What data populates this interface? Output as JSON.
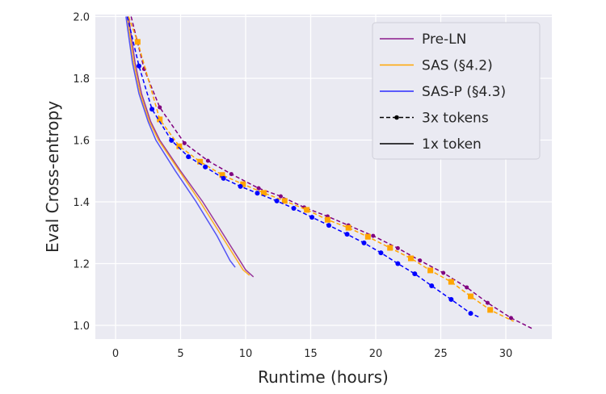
{
  "chart_data": {
    "type": "line",
    "title": "",
    "xlabel": "Runtime (hours)",
    "ylabel": "Eval Cross-entropy",
    "xlim": [
      -1.5,
      33.5
    ],
    "ylim": [
      0.95,
      2.0
    ],
    "xticks": [
      0,
      5,
      10,
      15,
      20,
      25,
      30
    ],
    "yticks": [
      1.0,
      1.2,
      1.4,
      1.6,
      1.8,
      2.0
    ],
    "xtick_labels": [
      "0",
      "5",
      "10",
      "15",
      "20",
      "25",
      "30"
    ],
    "ytick_labels": [
      "1.0",
      "1.2",
      "1.4",
      "1.6",
      "1.8",
      "2.0"
    ],
    "grid": true,
    "background": "#EAEAF2",
    "legend_position": "top-right",
    "legend": [
      {
        "label": "Pre-LN",
        "color": "#8B1A8B",
        "style": "solid"
      },
      {
        "label": "SAS (§4.2)",
        "color": "#FFA500",
        "style": "solid"
      },
      {
        "label": "SAS-P (§4.3)",
        "color": "#2B2BFF",
        "style": "solid"
      },
      {
        "label": "3x tokens",
        "color": "#000000",
        "style": "dashed-marker"
      },
      {
        "label": "1x token",
        "color": "#000000",
        "style": "solid"
      }
    ],
    "series": [
      {
        "model": "Pre-LN",
        "tokens": "1x",
        "color": "#8B1A8B",
        "dashed": false,
        "markers": false,
        "points": [
          [
            1.0,
            2.0
          ],
          [
            1.5,
            1.85
          ],
          [
            2.0,
            1.75
          ],
          [
            2.7,
            1.66
          ],
          [
            3.4,
            1.6
          ],
          [
            5.0,
            1.5
          ],
          [
            6.7,
            1.4
          ],
          [
            8.5,
            1.28
          ],
          [
            10.0,
            1.18
          ],
          [
            10.6,
            1.157
          ]
        ]
      },
      {
        "model": "SAS",
        "tokens": "1x",
        "color": "#FFA500",
        "dashed": false,
        "markers": false,
        "points": [
          [
            0.9,
            2.0
          ],
          [
            1.4,
            1.85
          ],
          [
            1.9,
            1.75
          ],
          [
            2.6,
            1.66
          ],
          [
            3.3,
            1.6
          ],
          [
            4.9,
            1.5
          ],
          [
            6.5,
            1.4
          ],
          [
            8.3,
            1.28
          ],
          [
            9.8,
            1.18
          ],
          [
            10.3,
            1.162
          ]
        ]
      },
      {
        "model": "SAS-P",
        "tokens": "1x",
        "color": "#3A3AF5",
        "dashed": false,
        "markers": false,
        "points": [
          [
            0.8,
            2.0
          ],
          [
            1.3,
            1.85
          ],
          [
            1.8,
            1.75
          ],
          [
            2.5,
            1.66
          ],
          [
            3.1,
            1.6
          ],
          [
            4.6,
            1.5
          ],
          [
            6.2,
            1.4
          ],
          [
            7.8,
            1.29
          ],
          [
            8.8,
            1.21
          ],
          [
            9.2,
            1.188
          ]
        ]
      },
      {
        "model": "Pre-LN",
        "tokens": "3x",
        "color": "#800080",
        "dashed": true,
        "markers": true,
        "points": [
          [
            1.2,
            2.0
          ],
          [
            2.2,
            1.83
          ],
          [
            3.4,
            1.706
          ],
          [
            5.3,
            1.59
          ],
          [
            7.1,
            1.533
          ],
          [
            8.9,
            1.49
          ],
          [
            11.0,
            1.444
          ],
          [
            12.7,
            1.418
          ],
          [
            14.5,
            1.382
          ],
          [
            16.3,
            1.353
          ],
          [
            17.9,
            1.324
          ],
          [
            19.8,
            1.29
          ],
          [
            21.7,
            1.25
          ],
          [
            23.4,
            1.21
          ],
          [
            25.2,
            1.17
          ],
          [
            27.0,
            1.123
          ],
          [
            28.6,
            1.073
          ],
          [
            30.4,
            1.024
          ],
          [
            32.0,
            0.99
          ]
        ]
      },
      {
        "model": "SAS",
        "tokens": "3x",
        "color": "#FFA500",
        "dashed": true,
        "markers": true,
        "points": [
          [
            1.0,
            2.0
          ],
          [
            1.7,
            1.918
          ],
          [
            3.4,
            1.667
          ],
          [
            4.9,
            1.58
          ],
          [
            6.5,
            1.53
          ],
          [
            8.2,
            1.487
          ],
          [
            9.8,
            1.457
          ],
          [
            11.4,
            1.429
          ],
          [
            13.0,
            1.403
          ],
          [
            14.7,
            1.374
          ],
          [
            16.3,
            1.342
          ],
          [
            17.9,
            1.316
          ],
          [
            19.4,
            1.287
          ],
          [
            21.1,
            1.251
          ],
          [
            22.7,
            1.217
          ],
          [
            24.2,
            1.178
          ],
          [
            25.8,
            1.141
          ],
          [
            27.3,
            1.094
          ],
          [
            28.8,
            1.05
          ],
          [
            30.6,
            1.013
          ]
        ]
      },
      {
        "model": "SAS-P",
        "tokens": "3x",
        "color": "#0000FF",
        "dashed": true,
        "markers": true,
        "points": [
          [
            0.9,
            2.0
          ],
          [
            1.8,
            1.84
          ],
          [
            2.8,
            1.7
          ],
          [
            4.3,
            1.599
          ],
          [
            5.6,
            1.546
          ],
          [
            6.9,
            1.513
          ],
          [
            8.3,
            1.476
          ],
          [
            9.6,
            1.45
          ],
          [
            10.9,
            1.428
          ],
          [
            12.4,
            1.403
          ],
          [
            13.7,
            1.379
          ],
          [
            15.1,
            1.35
          ],
          [
            16.4,
            1.324
          ],
          [
            17.8,
            1.295
          ],
          [
            19.1,
            1.267
          ],
          [
            20.4,
            1.235
          ],
          [
            21.7,
            1.2
          ],
          [
            23.0,
            1.167
          ],
          [
            24.3,
            1.128
          ],
          [
            25.8,
            1.084
          ],
          [
            27.3,
            1.039
          ],
          [
            28.0,
            1.026
          ]
        ]
      }
    ]
  }
}
